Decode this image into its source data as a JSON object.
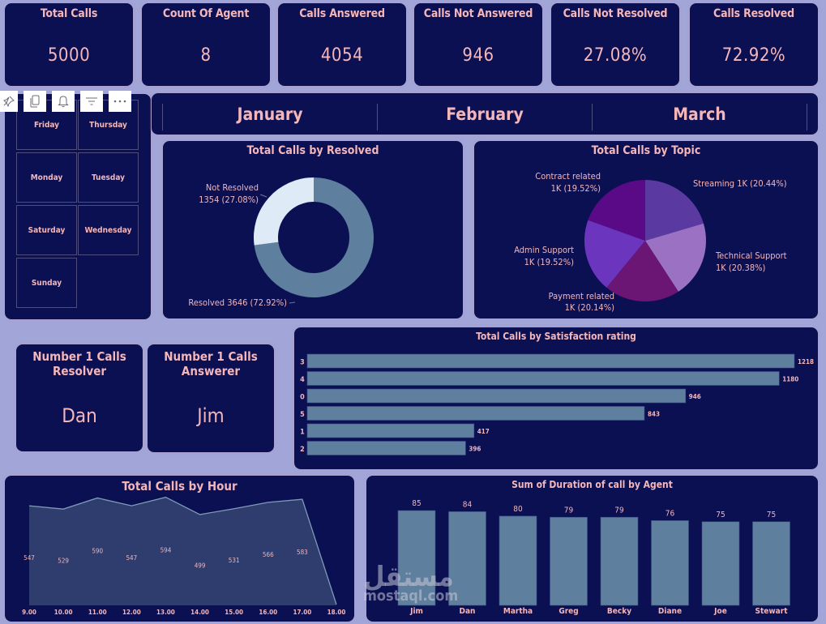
{
  "kpis": [
    {
      "title": "Total Calls",
      "value": "5000"
    },
    {
      "title": "Count Of Agent",
      "value": "8"
    },
    {
      "title": "Calls Answered",
      "value": "4054"
    },
    {
      "title": "Calls Not Answered",
      "value": "946"
    },
    {
      "title": "Calls Not Resolved",
      "value": "27.08%"
    },
    {
      "title": "Calls Resolved",
      "value": "72.92%"
    }
  ],
  "visual_toolbar": {
    "icons": [
      "pin-icon",
      "copy-icon",
      "bell-icon",
      "filter-icon",
      "more-options-icon"
    ],
    "glyphs": [
      "⚲",
      "❐",
      "🔔",
      "≡",
      "•••"
    ]
  },
  "day_slicer": {
    "days": [
      "Friday",
      "Thursday",
      "Monday",
      "Tuesday",
      "Saturday",
      "Wednesday",
      "Sunday"
    ]
  },
  "month_slicer": {
    "months": [
      "January",
      "February",
      "March"
    ]
  },
  "top_performers": [
    {
      "title": "Number 1 Calls Resolver",
      "value": "Dan"
    },
    {
      "title": "Number 1 Calls Answerer",
      "value": "Jim"
    }
  ],
  "colors": {
    "background": "#a1a5d8",
    "card": "#0b1052",
    "text": "#f4b6b9",
    "bar": "#5f7f9e",
    "donut_not_resolved": "#deebf7",
    "area_fill": "#2e3c6e"
  },
  "chart_data": [
    {
      "id": "resolved",
      "type": "pie",
      "donut": true,
      "title": "Total Calls by Resolved",
      "labels": [
        "Resolved",
        "Not Resolved"
      ],
      "values": [
        3646,
        1354
      ],
      "percents": [
        "72.92%",
        "27.08%"
      ],
      "data_labels": [
        "Resolved 3646 (72.92%)",
        "Not Resolved",
        "1354 (27.08%)"
      ],
      "colors": [
        "#5f7f9e",
        "#deebf7"
      ]
    },
    {
      "id": "topic",
      "type": "pie",
      "title": "Total Calls by Topic",
      "labels": [
        "Streaming",
        "Technical Support",
        "Payment related",
        "Admin Support",
        "Contract related"
      ],
      "percent_values": [
        20.44,
        20.38,
        20.14,
        19.52,
        19.52
      ],
      "data_labels": [
        [
          "Streaming 1K (20.44%)"
        ],
        [
          "Technical Support",
          "1K (20.38%)"
        ],
        [
          "Payment related",
          "1K (20.14%)"
        ],
        [
          "Admin Support",
          "1K (19.52%)"
        ],
        [
          "Contract related",
          "1K (19.52%)"
        ]
      ],
      "colors": [
        "#5a3aa0",
        "#9b72c3",
        "#6b1574",
        "#6b35bd",
        "#5a0a86"
      ]
    },
    {
      "id": "satisfaction",
      "type": "bar",
      "orientation": "horizontal",
      "title": "Total Calls by Satisfaction rating",
      "categories": [
        "3",
        "4",
        "0",
        "5",
        "1",
        "2"
      ],
      "values": [
        1218,
        1180,
        946,
        843,
        417,
        396
      ],
      "xlim": [
        0,
        1218
      ]
    },
    {
      "id": "hour",
      "type": "area",
      "title": "Total Calls by Hour",
      "categories": [
        "9.00",
        "10.00",
        "11.00",
        "12.00",
        "13.00",
        "14.00",
        "15.00",
        "16.00",
        "17.00",
        "18.00"
      ],
      "values": [
        547,
        529,
        590,
        547,
        594,
        499,
        531,
        566,
        583,
        5
      ],
      "value_labels": [
        "547",
        "529",
        "590",
        "547",
        "594",
        "499",
        "531",
        "566",
        "583",
        ""
      ],
      "ylim": [
        0,
        650
      ]
    },
    {
      "id": "duration",
      "type": "bar",
      "title": "Sum of Duration of call by Agent",
      "categories": [
        "Jim",
        "Dan",
        "Martha",
        "Greg",
        "Becky",
        "Diane",
        "Joe",
        "Stewart"
      ],
      "values": [
        85,
        84,
        80,
        79,
        79,
        76,
        75,
        75
      ],
      "ylim": [
        0,
        85
      ]
    }
  ],
  "watermark": {
    "arabic": "مستقل",
    "latin": "mostaql.com"
  }
}
